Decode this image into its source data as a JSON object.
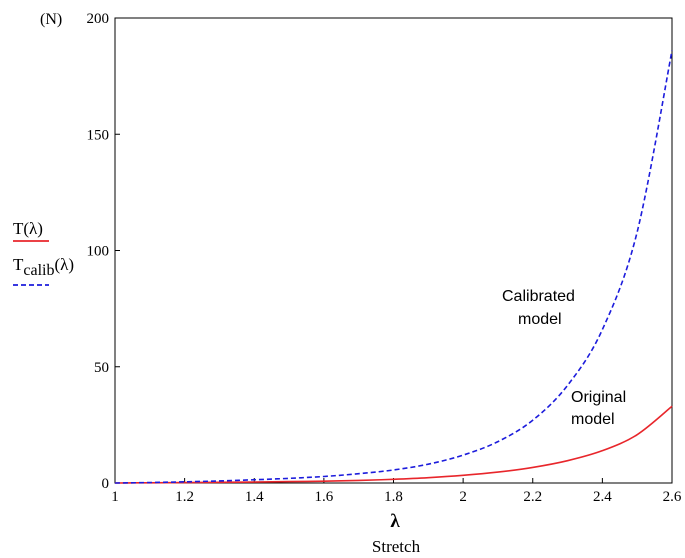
{
  "chart_data": {
    "type": "line",
    "xlabel_symbol": "λ",
    "xlabel": "Stretch",
    "yunit": "(N)",
    "xlim": [
      1,
      2.6
    ],
    "ylim": [
      0,
      200
    ],
    "xticks": [
      "1",
      "1.2",
      "1.4",
      "1.6",
      "1.8",
      "2",
      "2.2",
      "2.4",
      "2.6"
    ],
    "yticks": [
      "0",
      "50",
      "100",
      "150",
      "200"
    ],
    "grid": false,
    "legend_position": "left",
    "series": [
      {
        "name": "T(λ)",
        "legend_base": "T",
        "legend_sub": "",
        "legend_arg": "(λ)",
        "color": "#e8262b",
        "style": "solid",
        "x": [
          1.0,
          1.1,
          1.2,
          1.3,
          1.4,
          1.5,
          1.6,
          1.7,
          1.8,
          1.9,
          2.0,
          2.1,
          2.2,
          2.3,
          2.4,
          2.5,
          2.6
        ],
        "y": [
          0.0,
          0.1,
          0.2,
          0.3,
          0.4,
          0.6,
          0.8,
          1.1,
          1.6,
          2.3,
          3.3,
          4.7,
          6.7,
          9.6,
          13.9,
          20.8,
          33.0
        ]
      },
      {
        "name": "Tcalib(λ)",
        "legend_base": "T",
        "legend_sub": "calib",
        "legend_arg": "(λ)",
        "color": "#1c1cdc",
        "style": "dashed",
        "x": [
          1.0,
          1.1,
          1.2,
          1.3,
          1.4,
          1.5,
          1.6,
          1.7,
          1.8,
          1.9,
          2.0,
          2.1,
          2.2,
          2.3,
          2.4,
          2.5,
          2.6
        ],
        "y": [
          0.0,
          0.2,
          0.5,
          0.9,
          1.4,
          2.0,
          2.8,
          4.0,
          5.6,
          8.1,
          12.0,
          17.8,
          27.0,
          42.0,
          66.0,
          108.0,
          186.0
        ]
      }
    ],
    "annotations": [
      {
        "lines": [
          "Calibrated",
          "model"
        ]
      },
      {
        "lines": [
          "Original",
          "model"
        ]
      }
    ]
  }
}
